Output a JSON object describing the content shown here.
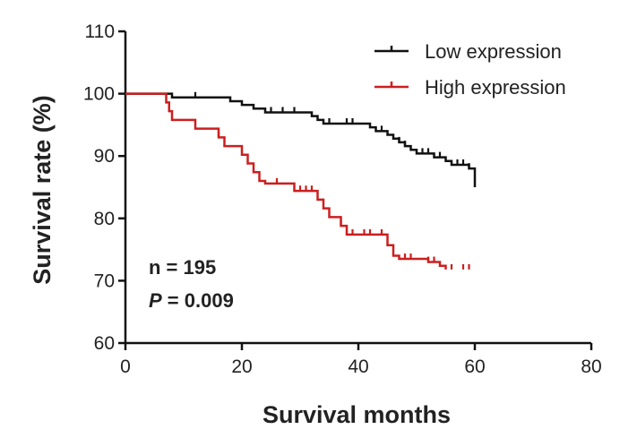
{
  "chart_data": {
    "type": "line",
    "title": "",
    "xlabel": "Survival months",
    "ylabel": "Survival rate (%)",
    "xlim": [
      0,
      80
    ],
    "ylim": [
      60,
      110
    ],
    "xticks": [
      0,
      20,
      40,
      60,
      80
    ],
    "yticks": [
      60,
      70,
      80,
      90,
      100,
      110
    ],
    "grid": false,
    "legend_position": "top-right",
    "series": [
      {
        "name": "Low expression",
        "color": "#111111",
        "steps": [
          [
            0,
            100
          ],
          [
            8,
            99.4
          ],
          [
            18,
            98.8
          ],
          [
            20,
            98.2
          ],
          [
            22,
            97.6
          ],
          [
            24,
            97.0
          ],
          [
            32,
            96.4
          ],
          [
            33,
            95.8
          ],
          [
            34,
            95.2
          ],
          [
            42,
            94.6
          ],
          [
            43,
            94.0
          ],
          [
            45,
            93.4
          ],
          [
            46,
            92.8
          ],
          [
            47,
            92.2
          ],
          [
            48,
            91.6
          ],
          [
            49,
            91.0
          ],
          [
            50,
            90.4
          ],
          [
            53,
            89.8
          ],
          [
            55,
            89.2
          ],
          [
            56,
            88.6
          ],
          [
            59,
            88.0
          ],
          [
            60,
            85.0
          ]
        ],
        "censored": [
          [
            12,
            99.4
          ],
          [
            25,
            97.0
          ],
          [
            27,
            97.0
          ],
          [
            29,
            97.0
          ],
          [
            35,
            95.2
          ],
          [
            38,
            95.2
          ],
          [
            39,
            95.2
          ],
          [
            44,
            94.0
          ],
          [
            47,
            92.2
          ],
          [
            48,
            91.6
          ],
          [
            51,
            90.4
          ],
          [
            52,
            90.4
          ],
          [
            54,
            89.8
          ],
          [
            57,
            88.6
          ],
          [
            58,
            88.6
          ],
          [
            59,
            88.0
          ]
        ]
      },
      {
        "name": "High expression",
        "color": "#cc1f1f",
        "steps": [
          [
            0,
            100
          ],
          [
            7,
            98.6
          ],
          [
            7.5,
            97.2
          ],
          [
            8,
            95.8
          ],
          [
            12,
            94.4
          ],
          [
            16,
            93.0
          ],
          [
            17,
            91.6
          ],
          [
            20,
            90.2
          ],
          [
            21,
            88.8
          ],
          [
            22,
            87.4
          ],
          [
            23,
            86.0
          ],
          [
            24,
            85.6
          ],
          [
            29,
            84.4
          ],
          [
            33,
            83.0
          ],
          [
            34,
            81.6
          ],
          [
            35,
            80.2
          ],
          [
            37,
            78.8
          ],
          [
            38,
            77.4
          ],
          [
            39,
            77.4
          ],
          [
            45,
            75.7
          ],
          [
            46,
            74.0
          ],
          [
            47,
            73.5
          ],
          [
            52,
            73.0
          ],
          [
            54,
            72.4
          ],
          [
            55,
            71.8
          ]
        ],
        "censored": [
          [
            16,
            93.0
          ],
          [
            26,
            85.6
          ],
          [
            30,
            84.4
          ],
          [
            31,
            84.4
          ],
          [
            32,
            84.4
          ],
          [
            37,
            78.8
          ],
          [
            39,
            77.4
          ],
          [
            41,
            77.4
          ],
          [
            42,
            77.4
          ],
          [
            44,
            77.4
          ],
          [
            48,
            73.5
          ],
          [
            49,
            73.5
          ],
          [
            52,
            73.0
          ],
          [
            53,
            73.0
          ],
          [
            56,
            71.8
          ],
          [
            58,
            71.8
          ],
          [
            59,
            71.8
          ]
        ]
      }
    ],
    "annotations": [
      "n = 195",
      "P",
      " = 0.009"
    ]
  }
}
